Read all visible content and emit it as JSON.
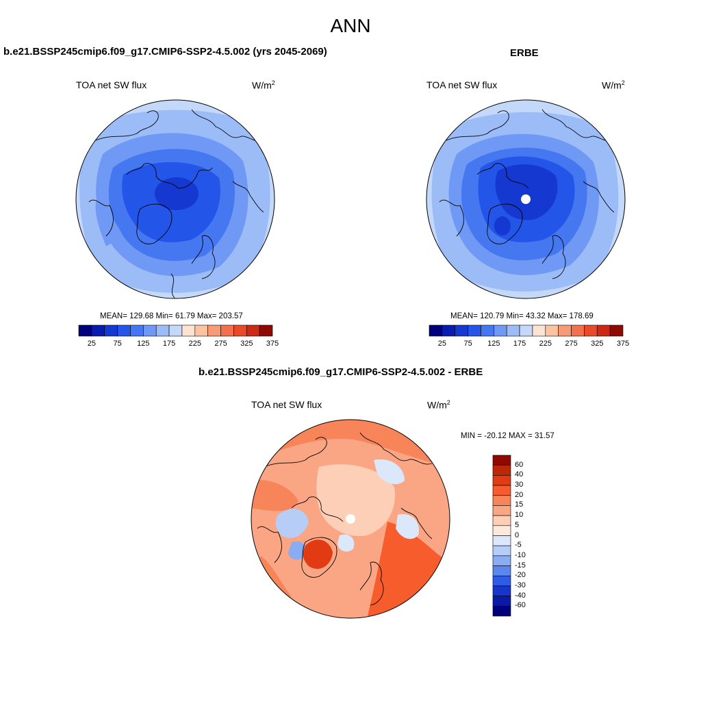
{
  "figure_title": "ANN",
  "panels": {
    "model": {
      "title": "b.e21.BSSP245cmip6.f09_g17.CMIP6-SSP2-4.5.002 (yrs 2045-2069)",
      "left_label": "TOA net SW flux",
      "unit_base": "W/m",
      "unit_exp": "2",
      "stats": "MEAN= 129.68  Min=  61.79  Max= 203.57"
    },
    "obs": {
      "title": "ERBE",
      "left_label": "TOA net SW flux",
      "unit_base": "W/m",
      "unit_exp": "2",
      "stats": "MEAN= 120.79  Min=  43.32  Max= 178.69"
    },
    "diff": {
      "title": "b.e21.BSSP245cmip6.f09_g17.CMIP6-SSP2-4.5.002 - ERBE",
      "left_label": "TOA net SW flux",
      "unit_base": "W/m",
      "unit_exp": "2",
      "stats": "MIN = -20.12 MAX =  31.57"
    }
  },
  "colorbars": {
    "abs": {
      "colors": [
        "#00007a",
        "#0a1bb0",
        "#1538d0",
        "#2255e8",
        "#4477f0",
        "#6f99f5",
        "#9cbcf8",
        "#c4d8fa",
        "#fde4d2",
        "#fbc3a2",
        "#f79a76",
        "#f2714c",
        "#e84a2a",
        "#cc2a14",
        "#8e0a00"
      ],
      "tick_labels": [
        "25",
        "75",
        "125",
        "175",
        "225",
        "275",
        "325",
        "375"
      ]
    },
    "diff": {
      "colors": [
        "#8e0a00",
        "#bb2808",
        "#e23b14",
        "#f65c2c",
        "#f8845a",
        "#faa684",
        "#fccfb6",
        "#fde8dc",
        "#dbe8fb",
        "#b6cdf8",
        "#8aacf3",
        "#5c87ee",
        "#2e5ce6",
        "#1535cc",
        "#0a1aa5",
        "#00007a"
      ],
      "tick_labels": [
        "60",
        "40",
        "30",
        "20",
        "15",
        "10",
        "5",
        "0",
        "-5",
        "-10",
        "-15",
        "-20",
        "-30",
        "-40",
        "-60"
      ]
    }
  },
  "maps": {
    "model": {
      "projection": "north-polar-stereographic",
      "palette": "blues",
      "pole_missing": false
    },
    "obs": {
      "projection": "north-polar-stereographic",
      "palette": "blues",
      "pole_missing": true
    },
    "diff": {
      "projection": "north-polar-stereographic",
      "palette": "diverging-red-blue",
      "pole_missing": true
    }
  }
}
